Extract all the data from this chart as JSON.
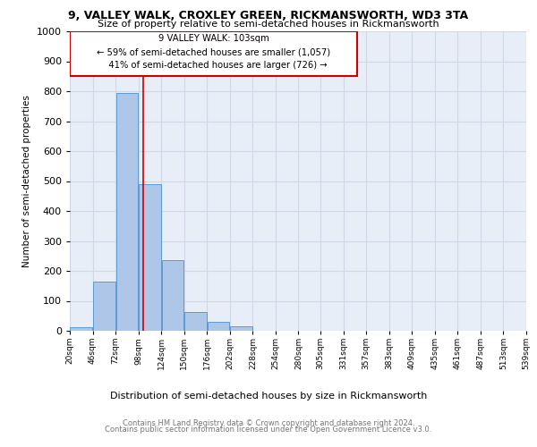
{
  "title_line1": "9, VALLEY WALK, CROXLEY GREEN, RICKMANSWORTH, WD3 3TA",
  "title_line2": "Size of property relative to semi-detached houses in Rickmansworth",
  "xlabel": "Distribution of semi-detached houses by size in Rickmansworth",
  "ylabel": "Number of semi-detached properties",
  "property_size": 103,
  "pct_smaller": 59,
  "count_smaller": 1057,
  "pct_larger": 41,
  "count_larger": 726,
  "bin_edges": [
    20,
    46,
    72,
    98,
    124,
    150,
    176,
    202,
    228,
    254,
    280,
    305,
    331,
    357,
    383,
    409,
    435,
    461,
    487,
    513,
    539
  ],
  "bar_heights": [
    11,
    165,
    793,
    490,
    237,
    62,
    30,
    14,
    0,
    0,
    0,
    0,
    0,
    0,
    0,
    0,
    0,
    0,
    0,
    0
  ],
  "bar_color": "#aec6e8",
  "bar_edge_color": "#5b9bd5",
  "vline_color": "#cc0000",
  "vline_x": 103,
  "annotation_box_color": "#cc0000",
  "ylim": [
    0,
    1000
  ],
  "yticks": [
    0,
    100,
    200,
    300,
    400,
    500,
    600,
    700,
    800,
    900,
    1000
  ],
  "grid_color": "#d0d8e8",
  "footer_line1": "Contains HM Land Registry data © Crown copyright and database right 2024.",
  "footer_line2": "Contains public sector information licensed under the Open Government Licence v3.0.",
  "bg_color": "#e8eef8",
  "tick_labels": [
    "20sqm",
    "46sqm",
    "72sqm",
    "98sqm",
    "124sqm",
    "150sqm",
    "176sqm",
    "202sqm",
    "228sqm",
    "254sqm",
    "280sqm",
    "305sqm",
    "331sqm",
    "357sqm",
    "383sqm",
    "409sqm",
    "435sqm",
    "461sqm",
    "487sqm",
    "513sqm",
    "539sqm"
  ]
}
